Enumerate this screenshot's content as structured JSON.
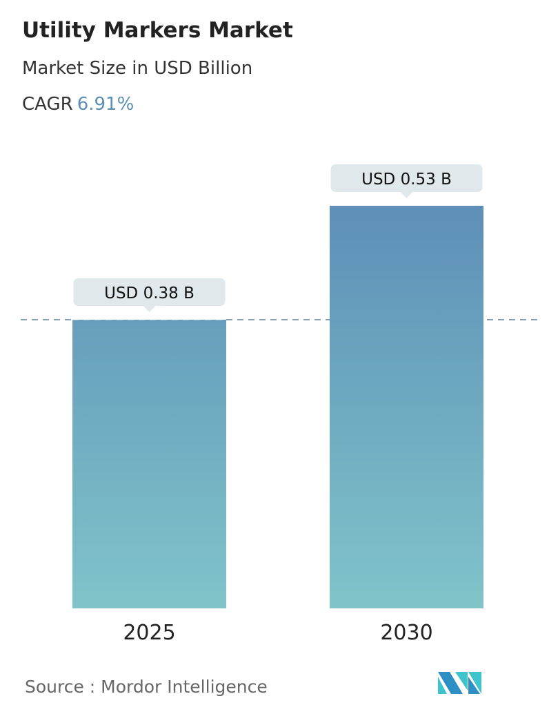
{
  "header": {
    "title": "Utility Markers Market",
    "subtitle": "Market Size in USD Billion",
    "cagr_label": "CAGR",
    "cagr_value": "6.91%"
  },
  "chart_data": {
    "type": "bar",
    "categories": [
      "2025",
      "2030"
    ],
    "values": [
      0.38,
      0.53
    ],
    "data_labels": [
      "USD 0.38 B",
      "USD 0.53 B"
    ],
    "ylim": [
      0,
      0.55
    ],
    "reference_line": 0.38,
    "grid": false,
    "colors": {
      "bar_top": "#5e8fb8",
      "bar_bottom": "#80c4c9",
      "label_bg": "#e1e8ec",
      "reference_line": "#5b7f99"
    }
  },
  "footer": {
    "source": "Source :  Mordor Intelligence"
  },
  "logo": {
    "text": "MI",
    "colors": [
      "#2e8fc4",
      "#3fc3cc"
    ]
  }
}
